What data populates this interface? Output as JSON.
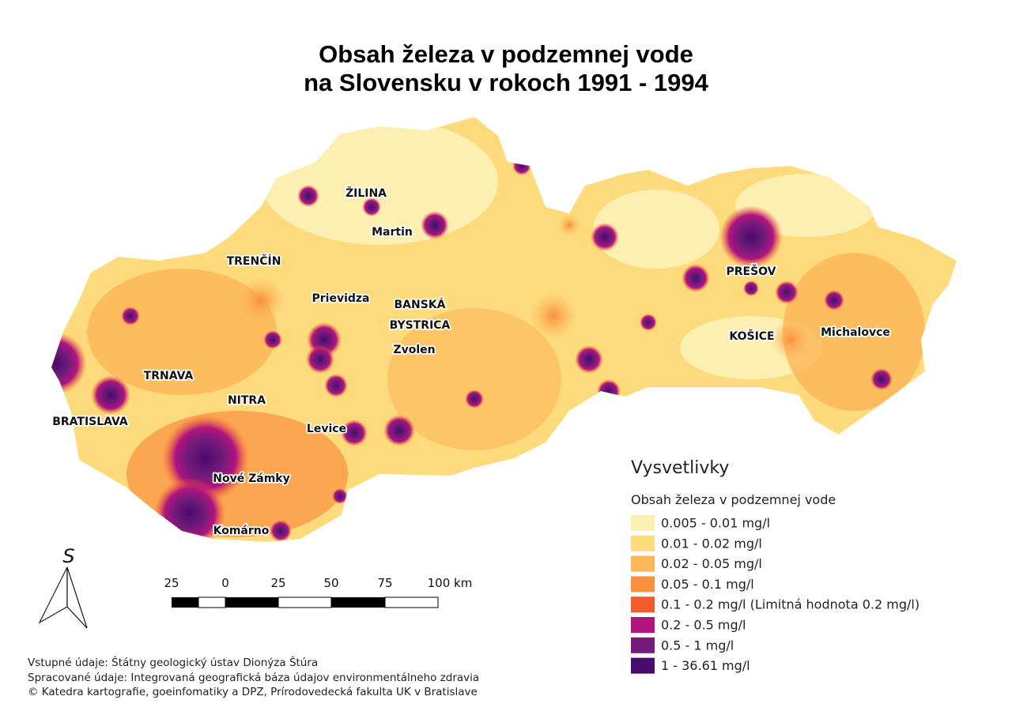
{
  "title": {
    "line1": "Obsah železa v podzemnej vode",
    "line2": "na Slovensku v rokoch 1991 - 1994"
  },
  "cities": [
    "ŽILINA",
    "Martin",
    "TRENČÍN",
    "Prievidza",
    "BANSKÁ",
    "BYSTRICA",
    "Zvolen",
    "TRNAVA",
    "NITRA",
    "BRATISLAVA",
    "Levice",
    "Nové Zámky",
    "Komárno",
    "PREŠOV",
    "KOŠICE",
    "Michalovce"
  ],
  "legend": {
    "title": "Vysvetlivky",
    "subtitle": "Obsah železa v podzemnej vode",
    "items": [
      {
        "label": "0.005 - 0.01 mg/l",
        "color": "#fdefb2"
      },
      {
        "label": "0.01 - 0.02 mg/l",
        "color": "#fddb7c"
      },
      {
        "label": "0.02 - 0.05 mg/l",
        "color": "#fcb557"
      },
      {
        "label": "0.05 - 0.1 mg/l",
        "color": "#f9903d"
      },
      {
        "label": "0.1 - 0.2 mg/l (Limitná hodnota 0.2 mg/l)",
        "color": "#f55a2c"
      },
      {
        "label": "0.2 - 0.5 mg/l",
        "color": "#b1137f"
      },
      {
        "label": "0.5 - 1 mg/l",
        "color": "#761b7c"
      },
      {
        "label": "1 - 36.61 mg/l",
        "color": "#490b6b"
      }
    ]
  },
  "scale_bar": {
    "labels": [
      "25",
      "0",
      "25",
      "50",
      "75",
      "100 km"
    ]
  },
  "north_arrow": {
    "label": "S"
  },
  "credits": [
    "Vstupné údaje: Štátny geologický ústav Dionýza Štúra",
    "Spracované údaje: Integrovaná geografická báza údajov environmentálneho zdravia",
    "© Katedra kartografie, goeinfomatiky a DPZ, Prírodovedecká fakulta UK v Bratislave"
  ]
}
